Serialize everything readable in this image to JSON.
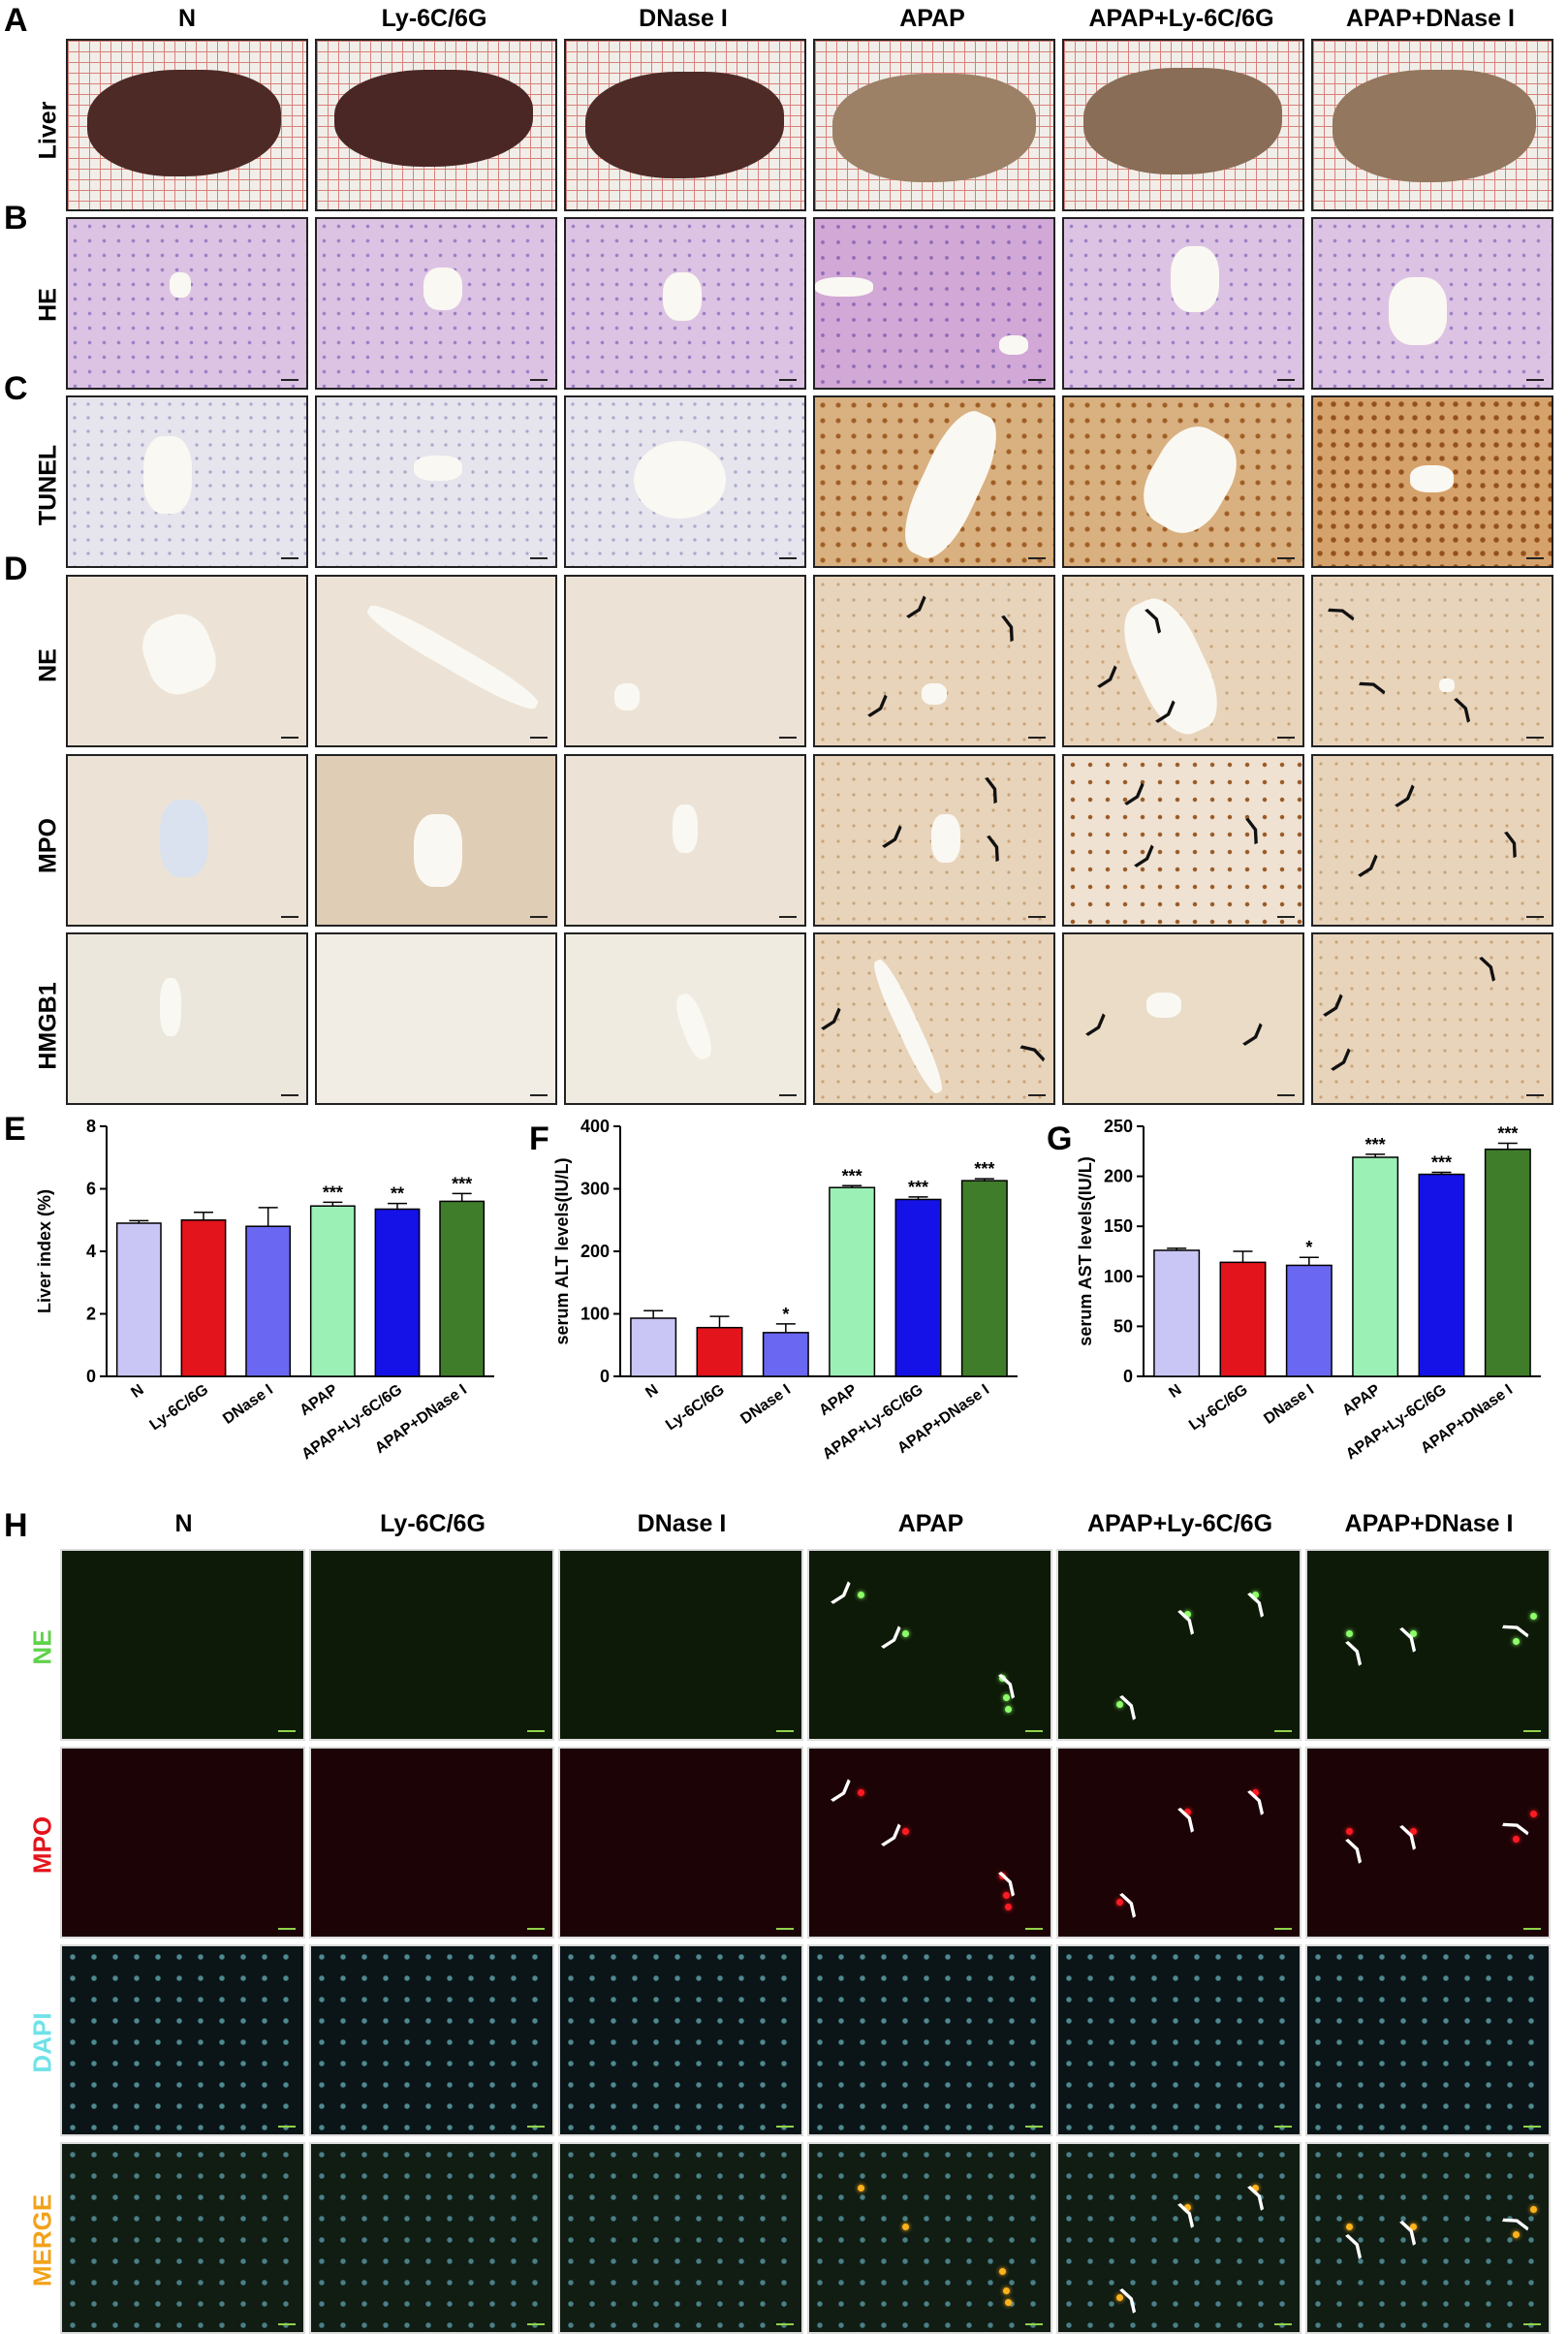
{
  "panel_letters": {
    "a": "A",
    "b": "B",
    "c": "C",
    "d": "D",
    "e": "E",
    "f": "F",
    "g": "G",
    "h": "H"
  },
  "columns": [
    "N",
    "Ly-6C/6G",
    "DNase I",
    "APAP",
    "APAP+Ly-6C/6G",
    "APAP+DNase I"
  ],
  "rows_top": {
    "liver": "Liver",
    "he": "HE",
    "tunel": "TUNEL",
    "ne": "NE",
    "mpo": "MPO",
    "hmgb1": "HMGB1"
  },
  "rows_fluor": [
    {
      "label": "NE",
      "color": "#5fd24a"
    },
    {
      "label": "MPO",
      "color": "#e3141c"
    },
    {
      "label": "DAPI",
      "color": "#6ee2e8"
    },
    {
      "label": "MERGE",
      "color": "#f2a21a"
    }
  ],
  "arrow_glyph": "⟩",
  "chart_data": [
    {
      "type": "bar",
      "title": "",
      "ylabel": "Liver index (%)",
      "categories": [
        "N",
        "Ly-6C/6G",
        "DNase I",
        "APAP",
        "APAP+Ly-6C/6G",
        "APAP+DNase I"
      ],
      "values": [
        4.9,
        5.0,
        4.8,
        5.45,
        5.35,
        5.6
      ],
      "errors": [
        0.08,
        0.25,
        0.6,
        0.12,
        0.18,
        0.25
      ],
      "significance": [
        "",
        "",
        "",
        "***",
        "**",
        "***"
      ],
      "colors": [
        "#c9c6f6",
        "#e3141c",
        "#6a67f2",
        "#9bf0b6",
        "#1412e6",
        "#3f7d2a"
      ],
      "ylim": [
        0,
        8
      ],
      "yticks": [
        0,
        2,
        4,
        6,
        8
      ]
    },
    {
      "type": "bar",
      "title": "",
      "ylabel": "serum ALT levels(IU/L)",
      "categories": [
        "N",
        "Ly-6C/6G",
        "DNase I",
        "APAP",
        "APAP+Ly-6C/6G",
        "APAP+DNase I"
      ],
      "values": [
        93,
        78,
        70,
        302,
        283,
        313
      ],
      "errors": [
        12,
        18,
        14,
        3,
        4,
        3
      ],
      "significance": [
        "",
        "",
        "*",
        "***",
        "***",
        "***"
      ],
      "colors": [
        "#c9c6f6",
        "#e3141c",
        "#6a67f2",
        "#9bf0b6",
        "#1412e6",
        "#3f7d2a"
      ],
      "ylim": [
        0,
        400
      ],
      "yticks": [
        0,
        100,
        200,
        300,
        400
      ]
    },
    {
      "type": "bar",
      "title": "",
      "ylabel": "serum AST levels(IU/L)",
      "categories": [
        "N",
        "Ly-6C/6G",
        "DNase I",
        "APAP",
        "APAP+Ly-6C/6G",
        "APAP+DNase I"
      ],
      "values": [
        126,
        114,
        111,
        219,
        202,
        227
      ],
      "errors": [
        2,
        11,
        8,
        3,
        2,
        6
      ],
      "significance": [
        "",
        "",
        "*",
        "***",
        "***",
        "***"
      ],
      "colors": [
        "#c9c6f6",
        "#e3141c",
        "#6a67f2",
        "#9bf0b6",
        "#1412e6",
        "#3f7d2a"
      ],
      "ylim": [
        0,
        250
      ],
      "yticks": [
        0,
        50,
        100,
        150,
        200,
        250
      ]
    }
  ]
}
